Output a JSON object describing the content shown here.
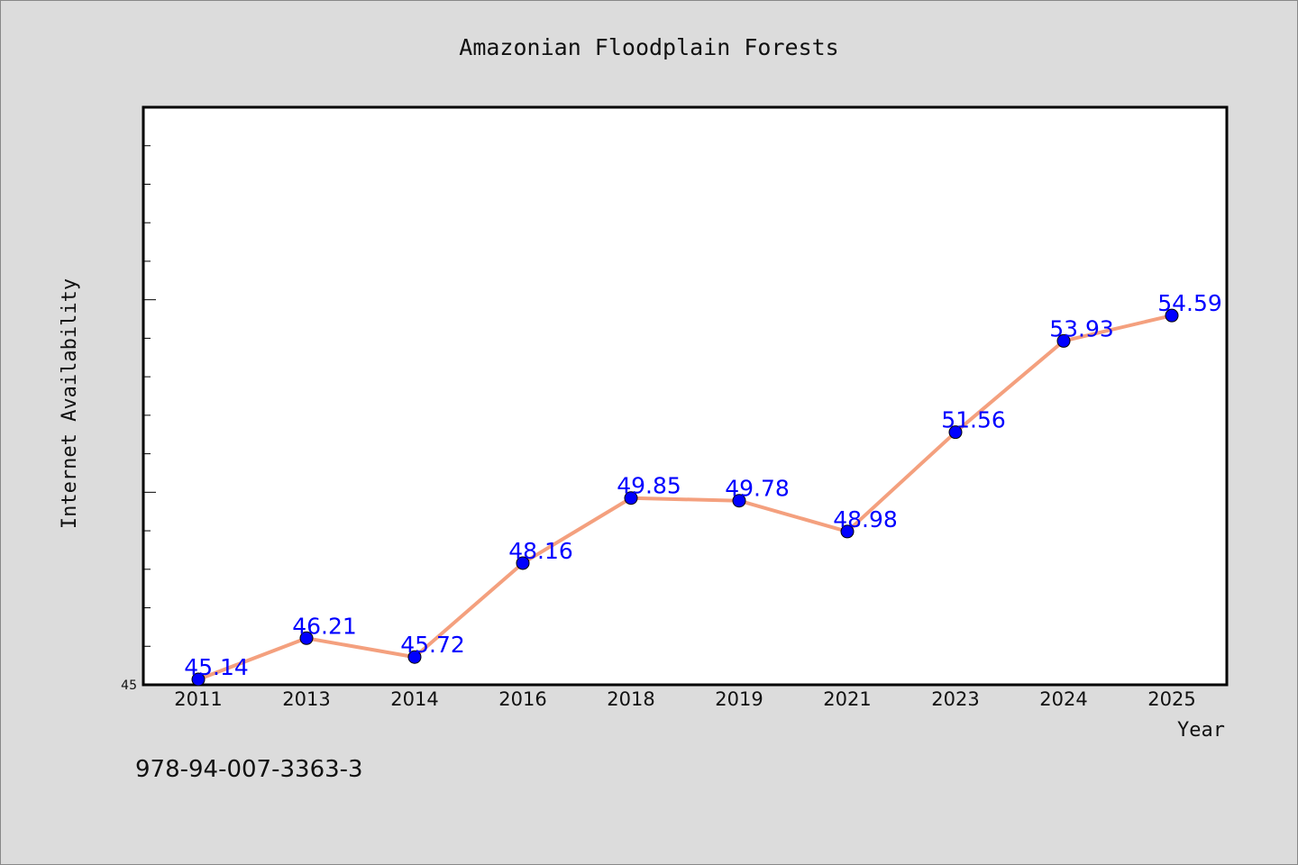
{
  "chart_data": {
    "type": "line",
    "title": "Amazonian Floodplain Forests",
    "xlabel": "Year",
    "ylabel": "Internet Availability",
    "categories": [
      "2011",
      "2013",
      "2014",
      "2016",
      "2018",
      "2019",
      "2021",
      "2023",
      "2024",
      "2025"
    ],
    "series": [
      {
        "values": [
          45.14,
          46.21,
          45.72,
          48.16,
          49.85,
          49.78,
          48.98,
          51.56,
          53.93,
          54.59
        ],
        "labels": [
          "45.14",
          "46.21",
          "45.72",
          "48.16",
          "49.85",
          "49.78",
          "48.98",
          "51.56",
          "53.93",
          "54.59"
        ],
        "line_color": "#f4a07e",
        "marker_color": "#0000ff"
      }
    ],
    "ylim": [
      45,
      60
    ],
    "ytick_label": "45",
    "grid": false,
    "legend": "none"
  },
  "footer": {
    "isbn": "978-94-007-3363-3"
  }
}
